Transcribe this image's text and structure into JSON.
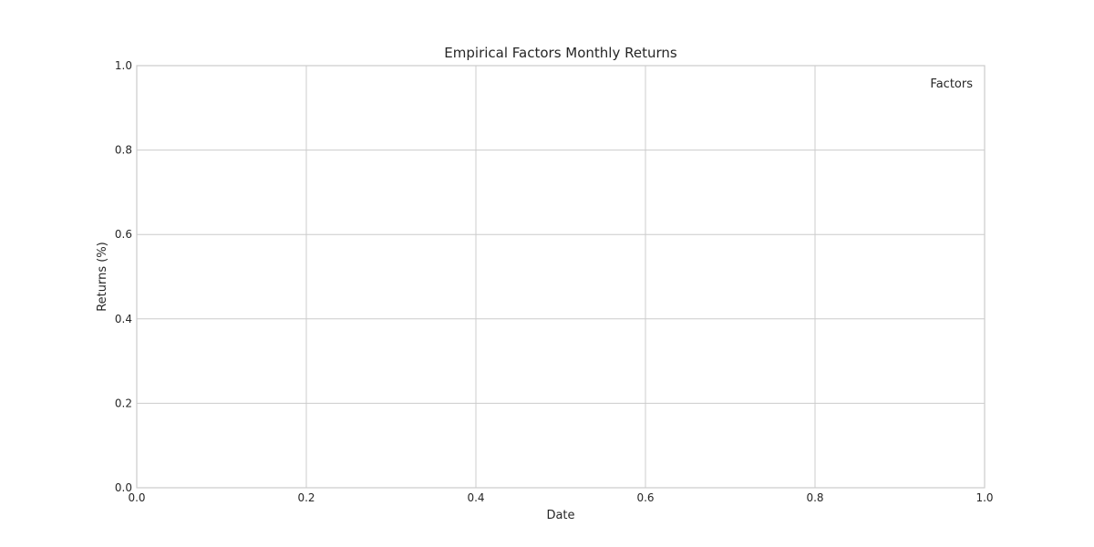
{
  "chart_data": {
    "type": "line",
    "title": "Empirical Factors Monthly Returns",
    "xlabel": "Date",
    "ylabel": "Returns (%)",
    "xlim": [
      0.0,
      1.0
    ],
    "ylim": [
      0.0,
      1.0
    ],
    "xticks": [
      "0.0",
      "0.2",
      "0.4",
      "0.6",
      "0.8",
      "1.0"
    ],
    "yticks": [
      "0.0",
      "0.2",
      "0.4",
      "0.6",
      "0.8",
      "1.0"
    ],
    "grid": true,
    "legend": {
      "title": "Factors",
      "placement": "top-right"
    },
    "series": []
  },
  "colors": {
    "grid": "#cccccc",
    "frame": "#cccccc",
    "text": "#262626",
    "background": "#ffffff"
  }
}
